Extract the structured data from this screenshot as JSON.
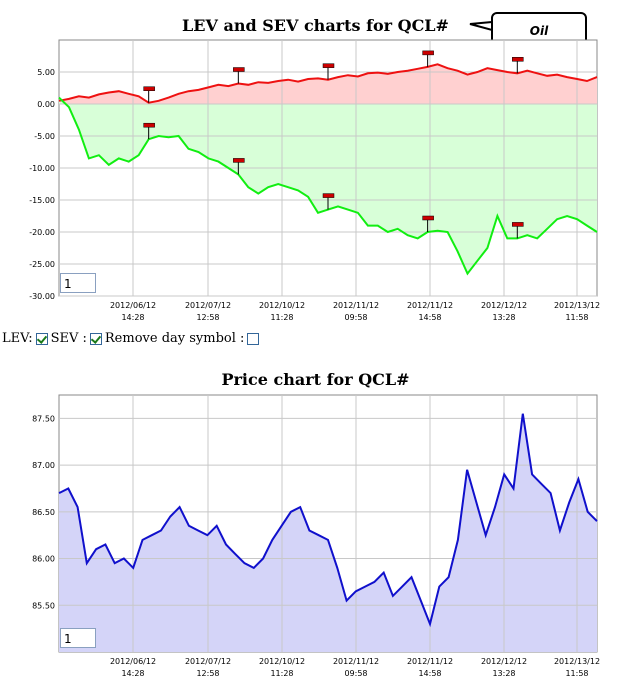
{
  "lev_chart": {
    "title": "LEV and SEV charts for QCL#",
    "callout": "Oil",
    "page_value": "1",
    "y_ticks": [
      "5.00",
      "0.00",
      "-5.00",
      "-10.00",
      "-15.00",
      "-20.00",
      "-25.00",
      "-30.00"
    ],
    "x_ticks": [
      {
        "date": "2012/06/12",
        "time": "14:28"
      },
      {
        "date": "2012/07/12",
        "time": "12:58"
      },
      {
        "date": "2012/10/12",
        "time": "11:28"
      },
      {
        "date": "2012/11/12",
        "time": "09:58"
      },
      {
        "date": "2012/11/12",
        "time": "14:58"
      },
      {
        "date": "2012/12/12",
        "time": "13:28"
      },
      {
        "date": "2012/13/12",
        "time": "11:58"
      }
    ],
    "colors": {
      "lev_line": "#ee1111",
      "lev_fill": "#ffd0d0",
      "sev_line": "#11ee11",
      "sev_fill": "#d8ffd8",
      "flag": "#cc0000"
    }
  },
  "controls": {
    "lev_label": "LEV:",
    "sev_label": "SEV :",
    "remove_label": "Remove day symbol :",
    "lev_checked": true,
    "sev_checked": true,
    "remove_checked": false
  },
  "price_chart": {
    "title": "Price chart for QCL#",
    "page_value": "1",
    "y_ticks": [
      "87.50",
      "87.00",
      "86.50",
      "86.00",
      "85.50"
    ],
    "x_ticks": [
      {
        "date": "2012/06/12",
        "time": "14:28"
      },
      {
        "date": "2012/07/12",
        "time": "12:58"
      },
      {
        "date": "2012/10/12",
        "time": "11:28"
      },
      {
        "date": "2012/11/12",
        "time": "09:58"
      },
      {
        "date": "2012/11/12",
        "time": "14:58"
      },
      {
        "date": "2012/12/12",
        "time": "13:28"
      },
      {
        "date": "2012/13/12",
        "time": "11:58"
      }
    ],
    "colors": {
      "line": "#1010cc",
      "fill": "#d4d4f8"
    }
  },
  "chart_data": [
    {
      "type": "line",
      "title": "LEV and SEV charts for QCL#",
      "ylim": [
        -30,
        10
      ],
      "x_ticks": [
        "2012/06/12 14:28",
        "2012/07/12 12:58",
        "2012/10/12 11:28",
        "2012/11/12 09:58",
        "2012/11/12 14:58",
        "2012/12/12 13:28",
        "2012/13/12 11:58"
      ],
      "series": [
        {
          "name": "LEV",
          "values": [
            0.5,
            0.8,
            1.2,
            1.0,
            1.5,
            1.8,
            2.0,
            1.6,
            1.2,
            0.2,
            0.5,
            1.0,
            1.6,
            2.0,
            2.2,
            2.6,
            3.0,
            2.8,
            3.2,
            3.0,
            3.4,
            3.3,
            3.6,
            3.8,
            3.5,
            3.9,
            4.0,
            3.8,
            4.2,
            4.5,
            4.3,
            4.8,
            4.9,
            4.7,
            5.0,
            5.2,
            5.5,
            5.8,
            6.2,
            5.6,
            5.2,
            4.6,
            5.0,
            5.6,
            5.3,
            5.0,
            4.8,
            5.2,
            4.8,
            4.4,
            4.6,
            4.2,
            3.9,
            3.6,
            4.2
          ]
        },
        {
          "name": "SEV",
          "values": [
            1.0,
            -0.5,
            -4.0,
            -8.5,
            -8.0,
            -9.5,
            -8.5,
            -9.0,
            -8.0,
            -5.5,
            -5.0,
            -5.2,
            -5.0,
            -7.0,
            -7.5,
            -8.5,
            -9.0,
            -10.0,
            -11.0,
            -13.0,
            -14.0,
            -13.0,
            -12.5,
            -13.0,
            -13.5,
            -14.5,
            -17.0,
            -16.5,
            -16.0,
            -16.5,
            -17.0,
            -19.0,
            -19.0,
            -20.0,
            -19.5,
            -20.5,
            -21.0,
            -20.0,
            -19.8,
            -20.0,
            -23.0,
            -26.5,
            -24.5,
            -22.5,
            -17.5,
            -21.0,
            -21.0,
            -20.5,
            -21.0,
            -19.5,
            -18.0,
            -17.5,
            -18.0,
            -19.0,
            -20.0
          ]
        }
      ],
      "annotations": [
        {
          "series": "LEV",
          "index": 9
        },
        {
          "series": "LEV",
          "index": 18
        },
        {
          "series": "LEV",
          "index": 27
        },
        {
          "series": "LEV",
          "index": 37
        },
        {
          "series": "LEV",
          "index": 46
        },
        {
          "series": "SEV",
          "index": 9
        },
        {
          "series": "SEV",
          "index": 18
        },
        {
          "series": "SEV",
          "index": 27
        },
        {
          "series": "SEV",
          "index": 37
        },
        {
          "series": "SEV",
          "index": 46
        }
      ],
      "grid": true
    },
    {
      "type": "area",
      "title": "Price chart for QCL#",
      "ylim": [
        85.0,
        87.75
      ],
      "x_ticks": [
        "2012/06/12 14:28",
        "2012/07/12 12:58",
        "2012/10/12 11:28",
        "2012/11/12 09:58",
        "2012/11/12 14:58",
        "2012/12/12 13:28",
        "2012/13/12 11:58"
      ],
      "series": [
        {
          "name": "Price",
          "values": [
            86.7,
            86.75,
            86.55,
            85.95,
            86.1,
            86.15,
            85.95,
            86.0,
            85.9,
            86.2,
            86.25,
            86.3,
            86.45,
            86.55,
            86.35,
            86.3,
            86.25,
            86.35,
            86.15,
            86.05,
            85.95,
            85.9,
            86.0,
            86.2,
            86.35,
            86.5,
            86.55,
            86.3,
            86.25,
            86.2,
            85.9,
            85.55,
            85.65,
            85.7,
            85.75,
            85.85,
            85.6,
            85.7,
            85.8,
            85.55,
            85.3,
            85.7,
            85.8,
            86.2,
            86.95,
            86.6,
            86.25,
            86.55,
            86.9,
            86.75,
            87.55,
            86.9,
            86.8,
            86.7,
            86.3,
            86.6,
            86.85,
            86.5,
            86.4
          ]
        }
      ],
      "grid": true
    }
  ]
}
